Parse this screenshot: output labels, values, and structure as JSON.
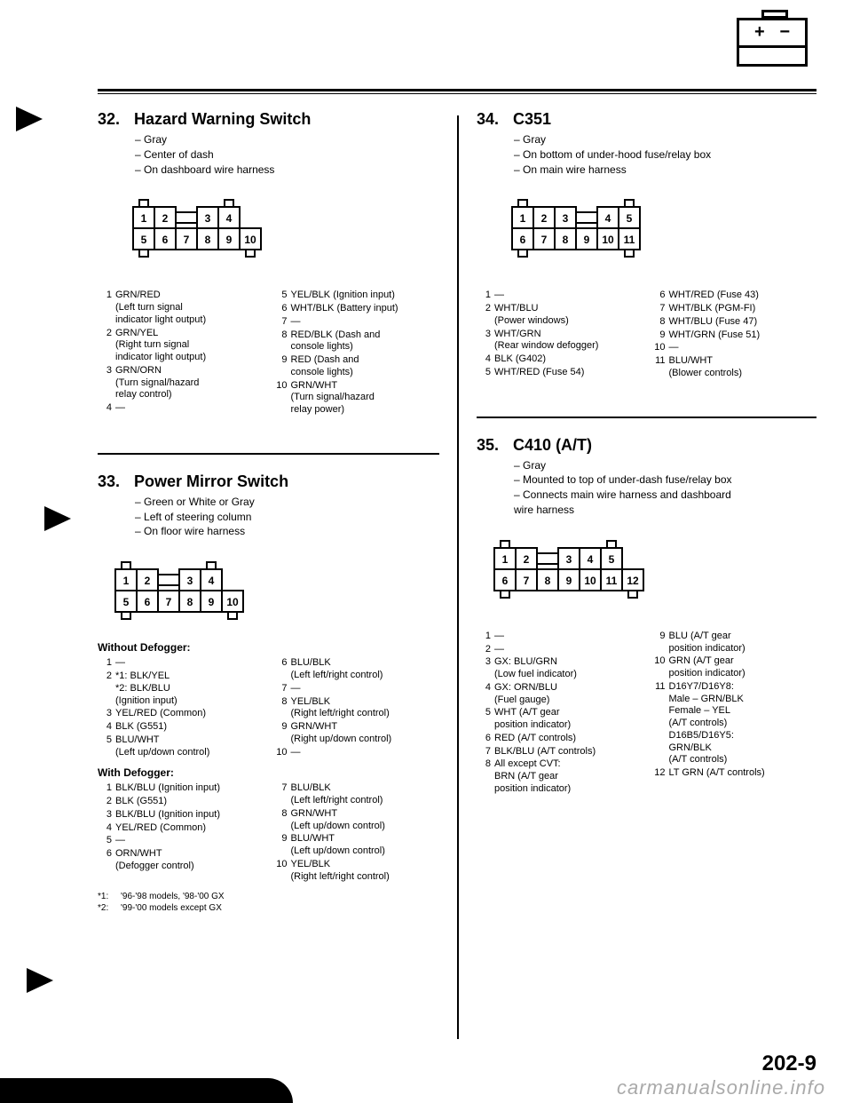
{
  "page_number": "202-9",
  "watermark": "carmanualsonline.info",
  "top_icon": {
    "plus": "+",
    "minus": "−"
  },
  "sections": {
    "s32": {
      "num": "32.",
      "title": "Hazard Warning Switch",
      "meta": [
        "Gray",
        "Center of dash",
        "On dashboard wire harness"
      ],
      "connector": {
        "top": [
          "1",
          "2",
          "3",
          "4"
        ],
        "bottom": [
          "5",
          "6",
          "7",
          "8",
          "9",
          "10"
        ],
        "gap_top_after": 2,
        "gap_bottom_after": 4
      },
      "pins_left": [
        {
          "n": "1",
          "t": "GRN/RED\n(Left turn signal\nindicator light output)"
        },
        {
          "n": "2",
          "t": "GRN/YEL\n(Right turn signal\nindicator light output)"
        },
        {
          "n": "3",
          "t": "GRN/ORN\n(Turn signal/hazard\nrelay control)"
        },
        {
          "n": "4",
          "t": "—"
        }
      ],
      "pins_right": [
        {
          "n": "5",
          "t": "YEL/BLK (Ignition input)"
        },
        {
          "n": "6",
          "t": "WHT/BLK (Battery input)"
        },
        {
          "n": "7",
          "t": "—"
        },
        {
          "n": "8",
          "t": "RED/BLK (Dash and\nconsole lights)"
        },
        {
          "n": "9",
          "t": "RED (Dash and\nconsole lights)"
        },
        {
          "n": "10",
          "t": "GRN/WHT\n(Turn signal/hazard\nrelay power)"
        }
      ]
    },
    "s33": {
      "num": "33.",
      "title": "Power Mirror Switch",
      "meta": [
        "Green or White or Gray",
        "Left of steering column",
        "On floor wire harness"
      ],
      "connector": {
        "top": [
          "1",
          "2",
          "3",
          "4"
        ],
        "bottom": [
          "5",
          "6",
          "7",
          "8",
          "9",
          "10"
        ],
        "gap_top_after": 2,
        "gap_bottom_after": 4
      },
      "sub1_label": "Without Defogger:",
      "sub1_left": [
        {
          "n": "1",
          "t": "—"
        },
        {
          "n": "2",
          "t": "*1: BLK/YEL\n*2: BLK/BLU\n(Ignition input)"
        },
        {
          "n": "3",
          "t": "YEL/RED (Common)"
        },
        {
          "n": "4",
          "t": "BLK (G551)"
        },
        {
          "n": "5",
          "t": "BLU/WHT\n(Left up/down control)"
        }
      ],
      "sub1_right": [
        {
          "n": "6",
          "t": "BLU/BLK\n(Left left/right control)"
        },
        {
          "n": "7",
          "t": "—"
        },
        {
          "n": "8",
          "t": "YEL/BLK\n(Right left/right control)"
        },
        {
          "n": "9",
          "t": "GRN/WHT\n(Right up/down control)"
        },
        {
          "n": "10",
          "t": "—"
        }
      ],
      "sub2_label": "With Defogger:",
      "sub2_left": [
        {
          "n": "1",
          "t": "BLK/BLU (Ignition input)"
        },
        {
          "n": "2",
          "t": "BLK (G551)"
        },
        {
          "n": "3",
          "t": "BLK/BLU (Ignition input)"
        },
        {
          "n": "4",
          "t": "YEL/RED (Common)"
        },
        {
          "n": "5",
          "t": "—"
        },
        {
          "n": "6",
          "t": "ORN/WHT\n(Defogger control)"
        }
      ],
      "sub2_right": [
        {
          "n": "7",
          "t": "BLU/BLK\n(Left left/right control)"
        },
        {
          "n": "8",
          "t": "GRN/WHT\n(Left up/down control)"
        },
        {
          "n": "9",
          "t": "BLU/WHT\n(Left up/down control)"
        },
        {
          "n": "10",
          "t": "YEL/BLK\n(Right left/right control)"
        }
      ],
      "footnotes": [
        {
          "k": "*1:",
          "v": "'96-'98 models, '98-'00 GX"
        },
        {
          "k": "*2:",
          "v": "'99-'00 models except GX"
        }
      ]
    },
    "s34": {
      "num": "34.",
      "title": "C351",
      "meta": [
        "Gray",
        "On bottom of under-hood fuse/relay box",
        "On main wire harness"
      ],
      "connector": {
        "top": [
          "1",
          "2",
          "3",
          "4",
          "5"
        ],
        "bottom": [
          "6",
          "7",
          "8",
          "9",
          "10",
          "11"
        ],
        "gap_top_after": 3,
        "gap_bottom_after": 3
      },
      "pins_left": [
        {
          "n": "1",
          "t": "—"
        },
        {
          "n": "2",
          "t": "WHT/BLU\n(Power windows)"
        },
        {
          "n": "3",
          "t": "WHT/GRN\n(Rear window defogger)"
        },
        {
          "n": "4",
          "t": "BLK (G402)"
        },
        {
          "n": "5",
          "t": "WHT/RED (Fuse 54)"
        }
      ],
      "pins_right": [
        {
          "n": "6",
          "t": "WHT/RED (Fuse 43)"
        },
        {
          "n": "7",
          "t": "WHT/BLK (PGM-FI)"
        },
        {
          "n": "8",
          "t": "WHT/BLU (Fuse 47)"
        },
        {
          "n": "9",
          "t": "WHT/GRN (Fuse 51)"
        },
        {
          "n": "10",
          "t": "—"
        },
        {
          "n": "11",
          "t": "BLU/WHT\n(Blower controls)"
        }
      ]
    },
    "s35": {
      "num": "35.",
      "title": "C410 (A/T)",
      "meta": [
        "Gray",
        "Mounted to top of under-dash fuse/relay box",
        "Connects main wire harness and dashboard\nwire harness"
      ],
      "connector": {
        "top": [
          "1",
          "2",
          "3",
          "4",
          "5"
        ],
        "bottom": [
          "6",
          "7",
          "8",
          "9",
          "10",
          "11",
          "12"
        ],
        "gap_top_after": 2,
        "gap_bottom_after": 100
      },
      "pins_left": [
        {
          "n": "1",
          "t": "—"
        },
        {
          "n": "2",
          "t": "—"
        },
        {
          "n": "3",
          "t": "GX: BLU/GRN\n(Low fuel indicator)"
        },
        {
          "n": "4",
          "t": "GX: ORN/BLU\n(Fuel gauge)"
        },
        {
          "n": "5",
          "t": "WHT (A/T gear\nposition indicator)"
        },
        {
          "n": "6",
          "t": "RED (A/T controls)"
        },
        {
          "n": "7",
          "t": "BLK/BLU (A/T controls)"
        },
        {
          "n": "8",
          "t": "All except CVT:\nBRN (A/T gear\nposition indicator)"
        }
      ],
      "pins_right": [
        {
          "n": "9",
          "t": "BLU (A/T gear\nposition indicator)"
        },
        {
          "n": "10",
          "t": "GRN (A/T gear\nposition indicator)"
        },
        {
          "n": "11",
          "t": "D16Y7/D16Y8:\nMale – GRN/BLK\nFemale – YEL\n(A/T controls)\nD16B5/D16Y5:\nGRN/BLK\n(A/T controls)"
        },
        {
          "n": "12",
          "t": "LT GRN (A/T controls)"
        }
      ]
    }
  }
}
